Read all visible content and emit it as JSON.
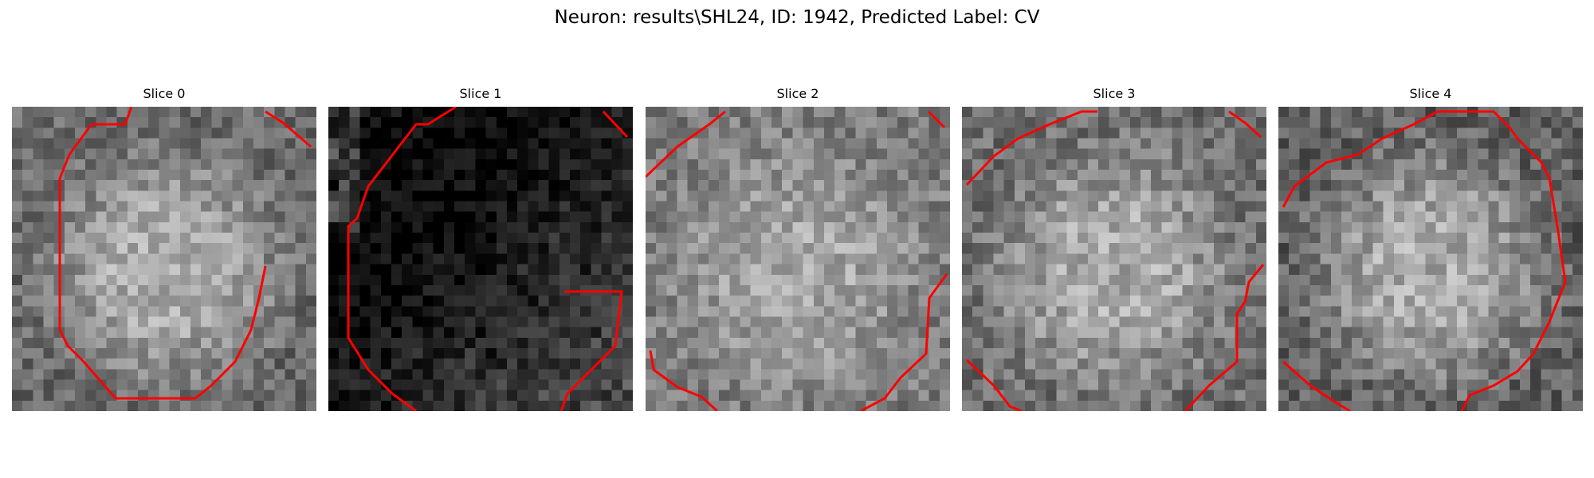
{
  "figure": {
    "title": "Neuron: results\\SHL24, ID: 1942, Predicted Label: CV",
    "contour_color": "#ff0000",
    "colormap": "gray"
  },
  "slices": [
    {
      "title": "Slice 0"
    },
    {
      "title": "Slice 1"
    },
    {
      "title": "Slice 2"
    },
    {
      "title": "Slice 3"
    },
    {
      "title": "Slice 4"
    }
  ]
}
